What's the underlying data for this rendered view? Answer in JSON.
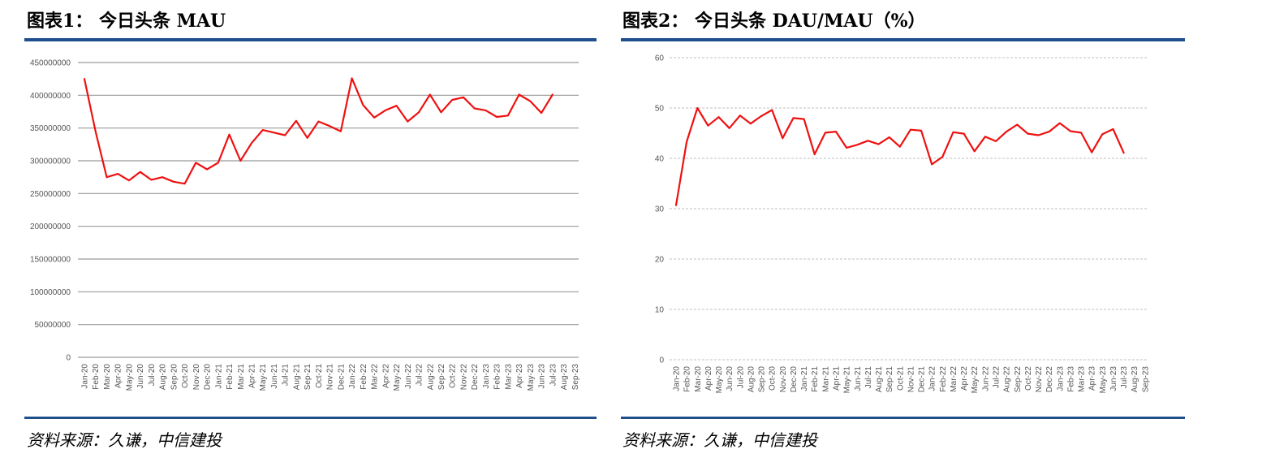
{
  "charts": [
    {
      "title": "图表1：  今日头条  MAU",
      "source": "资料来源：久谦，中信建投"
    },
    {
      "title": "图表2：  今日头条  DAU/MAU（%）",
      "source": "资料来源：久谦，中信建投"
    }
  ],
  "chart_data": [
    {
      "type": "line",
      "title": "图表1：  今日头条  MAU",
      "xlabel": "",
      "ylabel": "",
      "ylim": [
        0,
        450000000
      ],
      "yticks": [
        0,
        50000000,
        100000000,
        150000000,
        200000000,
        250000000,
        300000000,
        350000000,
        400000000,
        450000000
      ],
      "grid": true,
      "gridStyle": "solid",
      "lineColor": "#ee1111",
      "categories": [
        "Jan-20",
        "Feb-20",
        "Mar-20",
        "Apr-20",
        "May-20",
        "Jun-20",
        "Jul-20",
        "Aug-20",
        "Sep-20",
        "Oct-20",
        "Nov-20",
        "Dec-20",
        "Jan-21",
        "Feb-21",
        "Mar-21",
        "Apr-21",
        "May-21",
        "Jun-21",
        "Jul-21",
        "Aug-21",
        "Sep-21",
        "Oct-21",
        "Nov-21",
        "Dec-21",
        "Jan-22",
        "Feb-22",
        "Mar-22",
        "Apr-22",
        "May-22",
        "Jun-22",
        "Jul-22",
        "Aug-22",
        "Sep-22",
        "Oct-22",
        "Nov-22",
        "Dec-22",
        "Jan-23",
        "Feb-23",
        "Mar-23",
        "Apr-23",
        "May-23",
        "Jun-23",
        "Jul-23",
        "Aug-23",
        "Sep-23"
      ],
      "series": [
        {
          "values": [
            425000000,
            345000000,
            275000000,
            280000000,
            270000000,
            283000000,
            271000000,
            275000000,
            268000000,
            265000000,
            297000000,
            287000000,
            297000000,
            340000000,
            300000000,
            327000000,
            347000000,
            343000000,
            339000000,
            361000000,
            335000000,
            360000000,
            353000000,
            345000000,
            426000000,
            385000000,
            366000000,
            377000000,
            384000000,
            360000000,
            374000000,
            401000000,
            374000000,
            393000000,
            397000000,
            380000000,
            377000000,
            367000000,
            369000000,
            401000000,
            391000000,
            373000000,
            401000000,
            null,
            null
          ]
        }
      ]
    },
    {
      "type": "line",
      "title": "图表2：  今日头条  DAU/MAU（%）",
      "xlabel": "",
      "ylabel": "",
      "ylim": [
        0,
        60
      ],
      "yticks": [
        0,
        10,
        20,
        30,
        40,
        50,
        60
      ],
      "grid": true,
      "gridStyle": "dashed",
      "lineColor": "#ee1111",
      "categories": [
        "Jan-20",
        "Feb-20",
        "Mar-20",
        "Apr-20",
        "May-20",
        "Jun-20",
        "Jul-20",
        "Aug-20",
        "Sep-20",
        "Oct-20",
        "Nov-20",
        "Dec-20",
        "Jan-21",
        "Feb-21",
        "Mar-21",
        "Apr-21",
        "May-21",
        "Jun-21",
        "Jul-21",
        "Aug-21",
        "Sep-21",
        "Oct-21",
        "Nov-21",
        "Dec-21",
        "Jan-22",
        "Feb-22",
        "Mar-22",
        "Apr-22",
        "May-22",
        "Jun-22",
        "Jul-22",
        "Aug-22",
        "Sep-22",
        "Oct-22",
        "Nov-22",
        "Dec-22",
        "Jan-23",
        "Feb-23",
        "Mar-23",
        "Apr-23",
        "May-23",
        "Jun-23",
        "Jul-23",
        "Aug-23",
        "Sep-23"
      ],
      "series": [
        {
          "values": [
            30.7,
            43.3,
            50.0,
            46.5,
            48.2,
            46.0,
            48.5,
            46.9,
            48.4,
            49.6,
            44.0,
            48.0,
            47.8,
            40.8,
            45.1,
            45.3,
            42.1,
            42.7,
            43.5,
            42.8,
            44.2,
            42.3,
            45.7,
            45.5,
            38.8,
            40.3,
            45.2,
            44.9,
            41.4,
            44.3,
            43.4,
            45.3,
            46.7,
            44.9,
            44.6,
            45.3,
            47.0,
            45.4,
            45.1,
            41.2,
            44.8,
            45.8,
            41.1,
            null,
            null
          ]
        }
      ]
    }
  ]
}
